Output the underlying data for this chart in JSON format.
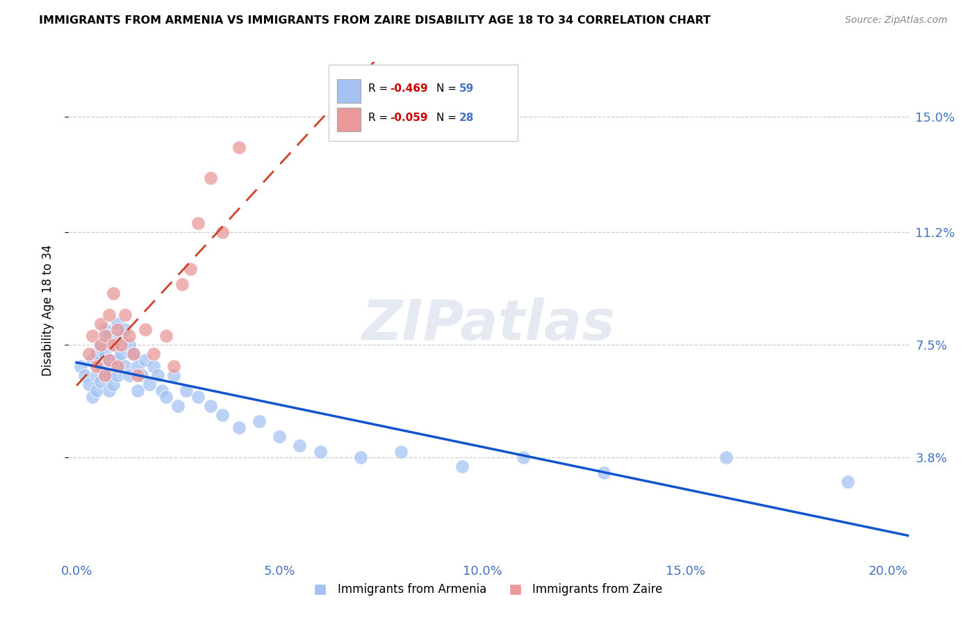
{
  "title": "IMMIGRANTS FROM ARMENIA VS IMMIGRANTS FROM ZAIRE DISABILITY AGE 18 TO 34 CORRELATION CHART",
  "source": "Source: ZipAtlas.com",
  "xlabel_ticks": [
    "0.0%",
    "5.0%",
    "10.0%",
    "15.0%",
    "20.0%"
  ],
  "xlabel_values": [
    0.0,
    0.05,
    0.1,
    0.15,
    0.2
  ],
  "ylabel": "Disability Age 18 to 34",
  "ylabel_ticks": [
    "15.0%",
    "11.2%",
    "7.5%",
    "3.8%"
  ],
  "ylabel_values": [
    0.15,
    0.112,
    0.075,
    0.038
  ],
  "xlim": [
    -0.002,
    0.205
  ],
  "ylim": [
    0.005,
    0.168
  ],
  "legend_blue_r": "-0.469",
  "legend_blue_n": "59",
  "legend_pink_r": "-0.059",
  "legend_pink_n": "28",
  "blue_color": "#a4c2f4",
  "pink_color": "#ea9999",
  "blue_line_color": "#1155cc",
  "pink_line_color": "#cc4125",
  "grid_color": "#cccccc",
  "title_color": "#000000",
  "axis_label_color": "#4472c4",
  "watermark": "ZIPatlas",
  "armenia_x": [
    0.001,
    0.002,
    0.003,
    0.004,
    0.004,
    0.005,
    0.005,
    0.005,
    0.006,
    0.006,
    0.006,
    0.007,
    0.007,
    0.007,
    0.008,
    0.008,
    0.008,
    0.008,
    0.009,
    0.009,
    0.009,
    0.01,
    0.01,
    0.01,
    0.01,
    0.011,
    0.011,
    0.012,
    0.012,
    0.013,
    0.013,
    0.014,
    0.015,
    0.015,
    0.016,
    0.017,
    0.018,
    0.019,
    0.02,
    0.021,
    0.022,
    0.024,
    0.025,
    0.027,
    0.03,
    0.033,
    0.036,
    0.04,
    0.045,
    0.05,
    0.055,
    0.06,
    0.07,
    0.08,
    0.095,
    0.11,
    0.13,
    0.16,
    0.19
  ],
  "armenia_y": [
    0.068,
    0.065,
    0.062,
    0.07,
    0.058,
    0.072,
    0.065,
    0.06,
    0.075,
    0.068,
    0.063,
    0.08,
    0.072,
    0.065,
    0.078,
    0.07,
    0.065,
    0.06,
    0.075,
    0.068,
    0.062,
    0.082,
    0.075,
    0.07,
    0.065,
    0.078,
    0.072,
    0.08,
    0.068,
    0.075,
    0.065,
    0.072,
    0.068,
    0.06,
    0.065,
    0.07,
    0.062,
    0.068,
    0.065,
    0.06,
    0.058,
    0.065,
    0.055,
    0.06,
    0.058,
    0.055,
    0.052,
    0.048,
    0.05,
    0.045,
    0.042,
    0.04,
    0.038,
    0.04,
    0.035,
    0.038,
    0.033,
    0.038,
    0.03
  ],
  "zaire_x": [
    0.003,
    0.004,
    0.005,
    0.006,
    0.006,
    0.007,
    0.007,
    0.008,
    0.008,
    0.009,
    0.009,
    0.01,
    0.01,
    0.011,
    0.012,
    0.013,
    0.014,
    0.015,
    0.017,
    0.019,
    0.022,
    0.024,
    0.026,
    0.028,
    0.03,
    0.033,
    0.036,
    0.04
  ],
  "zaire_y": [
    0.072,
    0.078,
    0.068,
    0.075,
    0.082,
    0.065,
    0.078,
    0.07,
    0.085,
    0.075,
    0.092,
    0.068,
    0.08,
    0.075,
    0.085,
    0.078,
    0.072,
    0.065,
    0.08,
    0.072,
    0.078,
    0.068,
    0.095,
    0.1,
    0.115,
    0.13,
    0.112,
    0.14
  ]
}
